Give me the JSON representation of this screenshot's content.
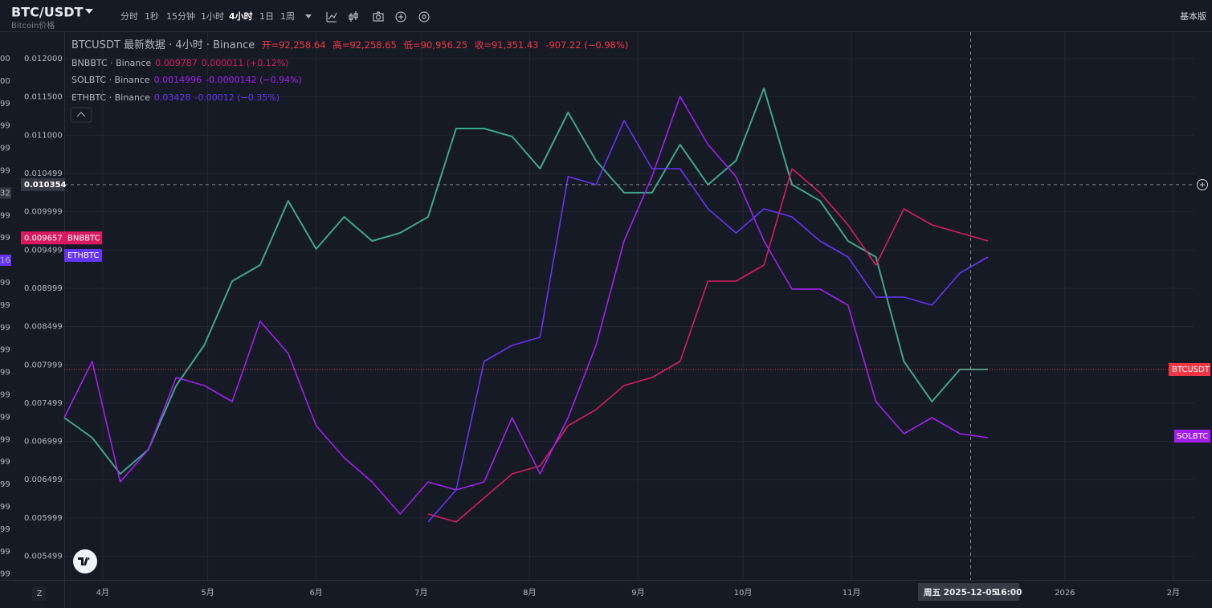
{
  "header": {
    "symbol": "BTC/USDT",
    "subtitle": "Bitcoin价格",
    "intervals": [
      "分时",
      "1秒",
      "15分钟",
      "1小时",
      "4小时",
      "1日",
      "1周"
    ],
    "mode": "基本版"
  },
  "legend": {
    "main": {
      "title": "BTCUSDT 最新数据 · 4小时 · Binance",
      "open": "开=92,258.64",
      "high": "高=92,258.65",
      "low": "低=90,956.25",
      "close": "收=91,351.43",
      "change": "-907.22 (−0.98%)"
    },
    "compare": [
      {
        "name": "BNBBTC · Binance",
        "value": "0.009787",
        "change": "0.000011 (+0.12%)"
      },
      {
        "name": "SOLBTC · Binance",
        "value": "0.0014996",
        "change": "-0.0000142 (−0.94%)"
      },
      {
        "name": "ETHBTC · Binance",
        "value": "0.03428",
        "change": "-0.00012 (−0.35%)"
      }
    ]
  },
  "left_edge_labels": [
    "00",
    "00",
    "99",
    "99",
    "99",
    "99",
    "32",
    "99",
    "99",
    "16",
    "99",
    "99",
    "99",
    "99",
    "99",
    "99",
    "99",
    "99",
    "99",
    "99",
    "99",
    "99",
    "99",
    "99"
  ],
  "bottom": {
    "zoom": "Z",
    "crosshair_date": "周五 2025-12-05",
    "crosshair_time": "16:00"
  },
  "chart_data": {
    "type": "line",
    "x": [
      "2025-03-21",
      "2025-03-29",
      "2025-04-06",
      "2025-04-14",
      "2025-04-22",
      "2025-04-30",
      "2025-05-08",
      "2025-05-16",
      "2025-05-24",
      "2025-06-01",
      "2025-06-09",
      "2025-06-17",
      "2025-06-25",
      "2025-07-03",
      "2025-07-11",
      "2025-07-19",
      "2025-07-27",
      "2025-08-04",
      "2025-08-12",
      "2025-08-20",
      "2025-08-28",
      "2025-09-05",
      "2025-09-13",
      "2025-09-21",
      "2025-09-29",
      "2025-10-07",
      "2025-10-15",
      "2025-10-23",
      "2025-10-31",
      "2025-11-08",
      "2025-11-16",
      "2025-11-24",
      "2025-12-02",
      "2025-12-10"
    ],
    "xlim": [
      "2025-03-21",
      "2026-02-07"
    ],
    "xticks": [
      {
        "value": "2025-04-01",
        "label": "4月"
      },
      {
        "value": "2025-05-01",
        "label": "5月"
      },
      {
        "value": "2025-06-01",
        "label": "6月"
      },
      {
        "value": "2025-07-01",
        "label": "7月"
      },
      {
        "value": "2025-08-01",
        "label": "8月"
      },
      {
        "value": "2025-09-01",
        "label": "9月"
      },
      {
        "value": "2025-10-01",
        "label": "10月"
      },
      {
        "value": "2025-11-01",
        "label": "11月"
      },
      {
        "value": "2026-01-01",
        "label": "2026"
      },
      {
        "value": "2026-02-01",
        "label": "2月"
      }
    ],
    "ylim": [
      0.00519,
      0.012346
    ],
    "yticks": [
      {
        "value": 0.012,
        "label": "0.012000"
      },
      {
        "value": 0.0115,
        "label": "0.011500"
      },
      {
        "value": 0.011,
        "label": "0.011000"
      },
      0.010499,
      0.009999,
      0.009499,
      0.008999,
      0.008499,
      0.007999,
      0.007499,
      0.006999,
      0.006499,
      0.005999,
      0.005499
    ],
    "grid": true,
    "crosshair_price": 0.010354,
    "tag_value": 0.009657,
    "series": [
      {
        "name": "BTCUSDT",
        "color": "#3fa58c",
        "values": [
          0.00731,
          0.007047,
          0.006575,
          0.00689,
          0.007729,
          0.008254,
          0.009093,
          0.009303,
          0.010143,
          0.009513,
          0.009933,
          0.009618,
          0.009723,
          0.009933,
          0.011087,
          0.011087,
          0.010982,
          0.010562,
          0.011297,
          0.010667,
          0.010248,
          0.010248,
          0.010877,
          0.010353,
          0.010667,
          0.011612,
          0.010353,
          0.010143,
          0.009618,
          0.009408,
          0.008044,
          0.007519,
          0.007939,
          0.007939
        ]
      },
      {
        "name": "BNBBTC",
        "color": "#d81b60",
        "values": [
          null,
          null,
          null,
          null,
          null,
          null,
          null,
          null,
          null,
          null,
          null,
          null,
          null,
          0.00605,
          0.005946,
          0.00626,
          0.006575,
          0.00668,
          0.007205,
          0.007415,
          0.007729,
          0.007834,
          0.008044,
          0.009093,
          0.009093,
          0.009303,
          0.010562,
          0.010248,
          0.009828,
          0.009303,
          0.010038,
          0.009828,
          0.009723,
          0.009618
        ]
      },
      {
        "name": "SOLBTC",
        "color": "#a31ff0",
        "values": [
          0.00731,
          0.008044,
          0.00647,
          0.00689,
          0.007834,
          0.007729,
          0.007519,
          0.008569,
          0.008149,
          0.007205,
          0.006785,
          0.00647,
          0.00605,
          0.00647,
          0.006365,
          0.00647,
          0.00731,
          0.006575,
          0.00731,
          0.008254,
          0.009618,
          0.010458,
          0.011507,
          0.010877,
          0.010458,
          0.009618,
          0.008989,
          0.008989,
          0.008779,
          0.007519,
          0.0071,
          0.00731,
          0.0071,
          0.007047
        ]
      },
      {
        "name": "ETHBTC",
        "color": "#6534f5",
        "values": [
          null,
          null,
          null,
          null,
          null,
          null,
          null,
          null,
          null,
          null,
          null,
          null,
          null,
          0.005946,
          0.006365,
          0.008044,
          0.008254,
          0.008359,
          0.010458,
          0.010353,
          0.011192,
          0.010562,
          0.010562,
          0.010038,
          0.009723,
          0.010038,
          0.009933,
          0.009618,
          0.009408,
          0.008884,
          0.008884,
          0.008779,
          0.009198,
          0.009408
        ]
      }
    ]
  }
}
